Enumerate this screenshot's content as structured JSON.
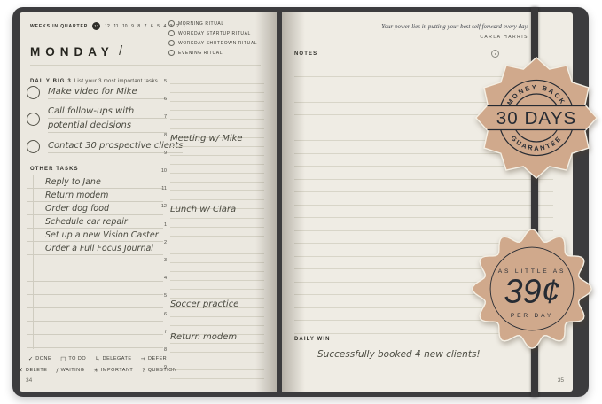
{
  "notebook": {
    "left_page_number": "34",
    "right_page_number": "35"
  },
  "header": {
    "weeks_label": "WEEKS IN QUARTER",
    "current_week": "13",
    "week_numbers": [
      "12",
      "11",
      "10",
      "9",
      "8",
      "7",
      "6",
      "5",
      "4",
      "3",
      "2",
      "1"
    ],
    "day_title": "MONDAY",
    "date_separator": "/"
  },
  "rituals": {
    "items": [
      "MORNING RITUAL",
      "WORKDAY STARTUP RITUAL",
      "WORKDAY SHUTDOWN RITUAL",
      "EVENING RITUAL"
    ]
  },
  "daily_big_3": {
    "label": "DAILY BIG 3",
    "sublabel": "List your 3 most important tasks.",
    "tasks": [
      {
        "lines": [
          "Make video for Mike"
        ]
      },
      {
        "lines": [
          "Call follow-ups with",
          "potential decisions"
        ]
      },
      {
        "lines": [
          "Contact 30 prospective clients"
        ]
      }
    ]
  },
  "other_tasks": {
    "label": "OTHER TASKS",
    "items": [
      "Reply to Jane",
      "Return modem",
      "Order dog food",
      "Schedule car repair",
      "Set up a new Vision Caster",
      "Order a Full Focus Journal"
    ]
  },
  "schedule": {
    "hours": [
      "5",
      "6",
      "7",
      "8",
      "9",
      "10",
      "11",
      "12",
      "1",
      "2",
      "3",
      "4",
      "5",
      "6",
      "7",
      "8",
      "9"
    ],
    "entries": [
      {
        "text": "Meeting w/ Mike",
        "row": 3
      },
      {
        "text": "Lunch w/ Clara",
        "row": 7
      },
      {
        "text": "Soccer practice",
        "row": 12.3
      },
      {
        "text": "Return modem",
        "row": 14.1
      }
    ]
  },
  "legend": {
    "row1": [
      {
        "symbol": "✓",
        "label": "DONE"
      },
      {
        "symbol": "□",
        "label": "TO DO"
      },
      {
        "symbol": "↳",
        "label": "DELEGATE"
      },
      {
        "symbol": "→",
        "label": "DEFER"
      }
    ],
    "row2": [
      {
        "symbol": "✗",
        "label": "DELETE"
      },
      {
        "symbol": "/",
        "label": "WAITING"
      },
      {
        "symbol": "✳",
        "label": "IMPORTANT"
      },
      {
        "symbol": "?",
        "label": "QUESTION"
      }
    ]
  },
  "notes_page": {
    "quote": "Your power lies in putting your best self forward every day.",
    "quote_author": "CARLA HARRIS",
    "notes_label": "NOTES",
    "daily_win_label": "DAILY WIN",
    "daily_win_entry": "Successfully booked 4 new clients!"
  },
  "badges": {
    "money_back": {
      "top_arc": "MONEY BACK",
      "center_text": "30 DAYS",
      "bottom_arc": "GUARANTEE",
      "background": "#d0a98c",
      "text_color": "#262b33"
    },
    "price_per_day": {
      "line1": "AS LITTLE AS",
      "line2": "39¢",
      "line3": "PER DAY",
      "background": "#d0a98c",
      "text_color": "#262b33"
    }
  }
}
